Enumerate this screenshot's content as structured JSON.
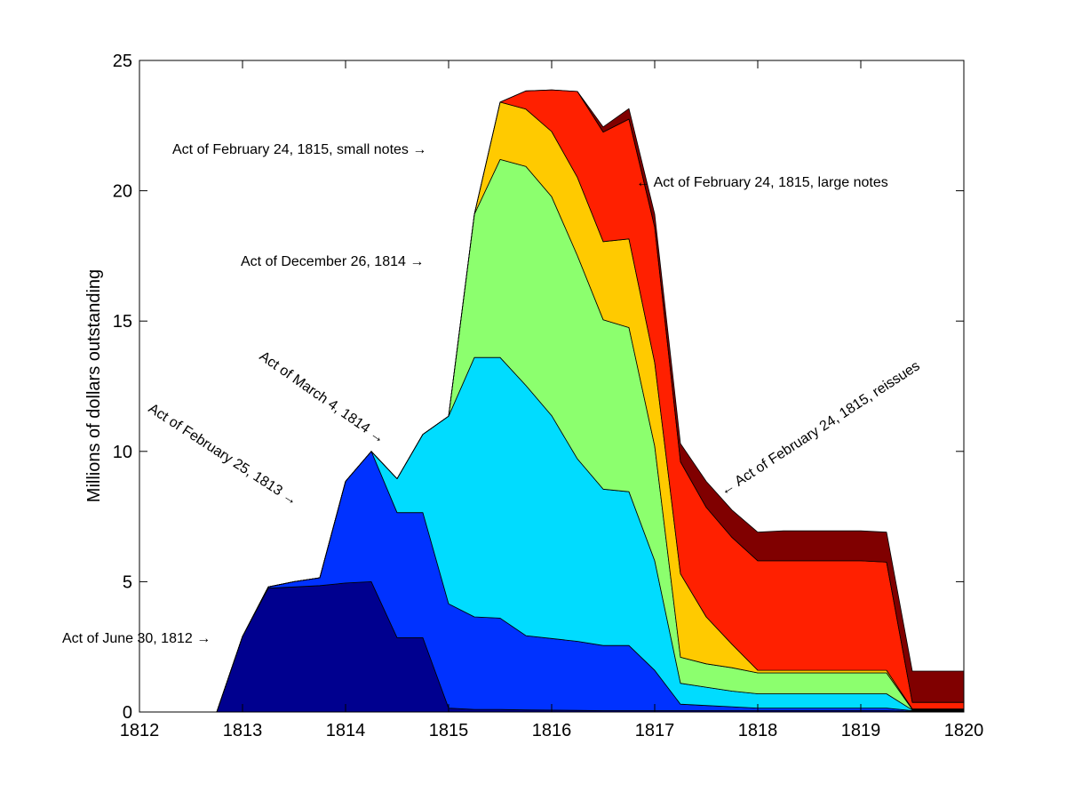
{
  "chart_data": {
    "type": "area",
    "stacked": true,
    "xlabel": "",
    "ylabel": "Millions of dollars outstanding",
    "xlim": [
      1812,
      1820
    ],
    "ylim": [
      0,
      25
    ],
    "xticks": [
      1812,
      1813,
      1814,
      1815,
      1816,
      1817,
      1818,
      1819,
      1820
    ],
    "yticks": [
      0,
      5,
      10,
      15,
      20,
      25
    ],
    "grid": false,
    "x": [
      1812.75,
      1813.0,
      1813.25,
      1813.5,
      1813.75,
      1814.0,
      1814.25,
      1814.5,
      1814.75,
      1815.0,
      1815.25,
      1815.5,
      1815.75,
      1816.0,
      1816.25,
      1816.5,
      1816.75,
      1817.0,
      1817.25,
      1817.5,
      1817.75,
      1818.0,
      1818.25,
      1818.5,
      1818.75,
      1819.0,
      1819.25,
      1819.5,
      1819.75,
      1820.0
    ],
    "series": [
      {
        "color": "#00008f",
        "values": [
          0,
          2.9,
          4.75,
          4.8,
          4.85,
          4.95,
          5.0,
          2.85,
          2.85,
          0.15,
          0.1,
          0.1,
          0.08,
          0.07,
          0.06,
          0.05,
          0.05,
          0.05,
          0.05,
          0.05,
          0.05,
          0.05,
          0.05,
          0.05,
          0.05,
          0.05,
          0.05,
          0.03,
          0.03,
          0.03
        ]
      },
      {
        "color": "#0032ff",
        "values": [
          0,
          0,
          0.05,
          0.2,
          0.3,
          3.9,
          5.0,
          4.8,
          4.8,
          4.0,
          3.55,
          3.5,
          2.85,
          2.75,
          2.65,
          2.5,
          2.5,
          1.55,
          0.25,
          0.2,
          0.15,
          0.1,
          0.1,
          0.1,
          0.1,
          0.1,
          0.1,
          0.02,
          0.02,
          0.02
        ]
      },
      {
        "color": "#00dcff",
        "values": [
          0,
          0,
          0,
          0,
          0,
          0,
          0,
          1.3,
          3.0,
          7.2,
          9.95,
          10.0,
          9.6,
          8.55,
          7.0,
          6.0,
          5.9,
          4.2,
          0.8,
          0.7,
          0.6,
          0.55,
          0.55,
          0.55,
          0.55,
          0.55,
          0.55,
          0.03,
          0.03,
          0.03
        ]
      },
      {
        "color": "#8cff6e",
        "values": [
          0,
          0,
          0,
          0,
          0,
          0,
          0,
          0,
          0,
          0,
          5.5,
          7.6,
          8.4,
          8.4,
          7.8,
          6.5,
          6.3,
          4.4,
          1.0,
          0.9,
          0.9,
          0.8,
          0.8,
          0.8,
          0.8,
          0.8,
          0.8,
          0.02,
          0.02,
          0.02
        ]
      },
      {
        "color": "#ffca00",
        "values": [
          0,
          0,
          0,
          0,
          0,
          0,
          0,
          0,
          0,
          0,
          0,
          2.2,
          2.2,
          2.5,
          3.0,
          3.0,
          3.4,
          3.2,
          3.2,
          1.8,
          0.9,
          0.1,
          0.1,
          0.1,
          0.1,
          0.1,
          0.1,
          0.02,
          0.02,
          0.02
        ]
      },
      {
        "color": "#ff2000",
        "values": [
          0,
          0,
          0,
          0,
          0,
          0,
          0,
          0,
          0,
          0,
          0,
          0,
          0.7,
          1.6,
          3.3,
          4.2,
          4.6,
          5.2,
          4.3,
          4.2,
          4.1,
          4.2,
          4.2,
          4.2,
          4.2,
          4.2,
          4.15,
          0.25,
          0.25,
          0.25
        ]
      },
      {
        "color": "#800000",
        "values": [
          0,
          0,
          0,
          0,
          0,
          0,
          0,
          0,
          0,
          0,
          0,
          0,
          0,
          0,
          0,
          0.2,
          0.4,
          0.5,
          0.7,
          1.0,
          1.05,
          1.1,
          1.15,
          1.15,
          1.15,
          1.15,
          1.15,
          1.2,
          1.2,
          1.2
        ]
      }
    ],
    "annotations": [
      {
        "text": "Act of June 30, 1812 →"
      },
      {
        "text": "Act of February 25, 1813 →"
      },
      {
        "text": "Act of March 4, 1814 →"
      },
      {
        "text": "Act of December 26, 1814 →"
      },
      {
        "text": "Act of February 24, 1815, small notes →"
      },
      {
        "text": "← Act of February 24, 1815, large notes"
      },
      {
        "text": "← Act of February 24, 1815, reissues"
      }
    ]
  }
}
